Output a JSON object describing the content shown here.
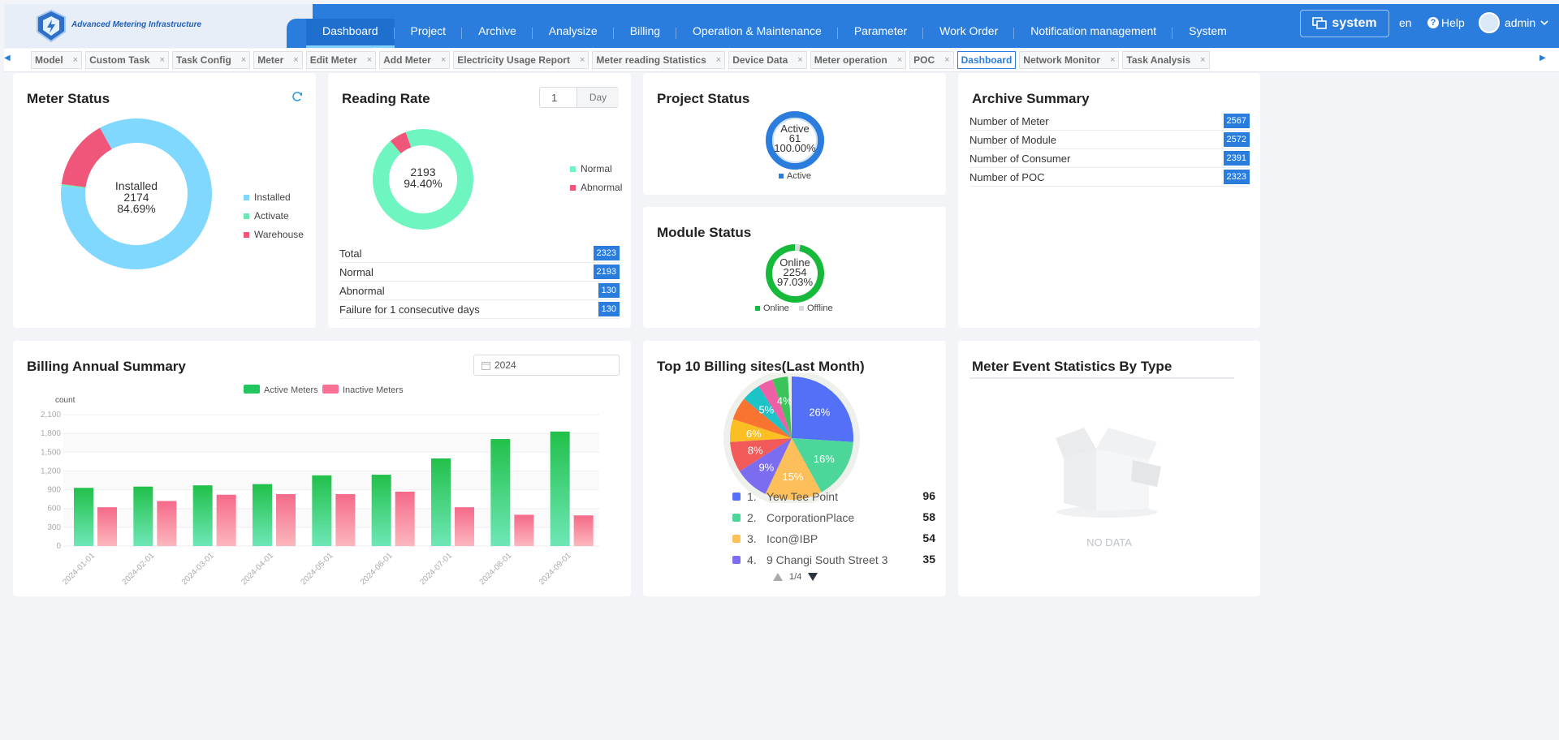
{
  "header": {
    "logo_text": "Advanced Metering Infrastructure",
    "nav": [
      "Dashboard",
      "Project",
      "Archive",
      "Analysize",
      "Billing",
      "Operation & Maintenance",
      "Parameter",
      "Work Order",
      "Notification management",
      "System"
    ],
    "system_label": "system",
    "lang": "en",
    "help": "Help",
    "user": "admin"
  },
  "tabs": [
    "Model",
    "Custom Task",
    "Task Config",
    "Meter",
    "Edit Meter",
    "Add Meter",
    "Electricity Usage Report",
    "Meter reading Statistics",
    "Device Data",
    "Meter operation",
    "POC",
    "Dashboard",
    "Network Monitor",
    "Task Analysis"
  ],
  "meter_status": {
    "title": "Meter Status",
    "center_label": "Installed",
    "center_value": "2174",
    "center_pct": "84.69%",
    "legend": [
      "Installed",
      "Activate",
      "Warehouse"
    ],
    "colors": [
      "#80d8ff",
      "#6ee7b7",
      "#f0567a"
    ],
    "values": [
      2174,
      10,
      383
    ]
  },
  "reading_rate": {
    "title": "Reading Rate",
    "day_value": "1",
    "day_unit": "Day",
    "center_value": "2193",
    "center_pct": "94.40%",
    "legend": [
      "Normal",
      "Abnormal"
    ],
    "colors": [
      "#6ef5c0",
      "#f0567a"
    ],
    "values": [
      2193,
      130
    ],
    "rows": [
      {
        "label": "Total",
        "value": "2323"
      },
      {
        "label": "Normal",
        "value": "2193"
      },
      {
        "label": "Abnormal",
        "value": "130"
      },
      {
        "label": "Failure for 1 consecutive days",
        "value": "130"
      }
    ]
  },
  "project_status": {
    "title": "Project Status",
    "center_label": "Active",
    "center_value": "61",
    "center_pct": "100.00%",
    "legend": "Active",
    "color": "#2a7ddc"
  },
  "module_status": {
    "title": "Module Status",
    "center_label": "Online",
    "center_value": "2254",
    "center_pct": "97.03%",
    "legend": [
      "Online",
      "Offline"
    ],
    "colors": [
      "#17b93a",
      "#d5d8dc"
    ],
    "values": [
      2254,
      69
    ]
  },
  "archive_summary": {
    "title": "Archive Summary",
    "rows": [
      {
        "label": "Number of Meter",
        "value": "2567"
      },
      {
        "label": "Number of Module",
        "value": "2572"
      },
      {
        "label": "Number of Consumer",
        "value": "2391"
      },
      {
        "label": "Number of POC",
        "value": "2323"
      }
    ]
  },
  "billing_summary": {
    "title": "Billing Annual Summary",
    "year": "2024"
  },
  "chart_data": {
    "type": "bar",
    "title": "Billing Annual Summary",
    "ylabel": "count",
    "ylim": [
      0,
      2100
    ],
    "yticks": [
      "0",
      "300",
      "600",
      "900",
      "1,200",
      "1,500",
      "1,800",
      "2,100"
    ],
    "categories": [
      "2024-01-01",
      "2024-02-01",
      "2024-03-01",
      "2024-04-01",
      "2024-05-01",
      "2024-06-01",
      "2024-07-01",
      "2024-08-01",
      "2024-09-01"
    ],
    "series": [
      {
        "name": "Active Meters",
        "color": "#22c55e",
        "values": [
          930,
          950,
          970,
          990,
          1130,
          1140,
          1400,
          1710,
          1830
        ]
      },
      {
        "name": "Inactive Meters",
        "color": "#f87194",
        "values": [
          620,
          720,
          820,
          830,
          830,
          870,
          620,
          500,
          490
        ]
      }
    ]
  },
  "top_sites": {
    "title": "Top 10 Billing sites(Last Month)",
    "pie": [
      {
        "pct": 26,
        "label": "26%",
        "color": "#5470f6"
      },
      {
        "pct": 16,
        "label": "16%",
        "color": "#4cd69a"
      },
      {
        "pct": 15,
        "label": "15%",
        "color": "#fcbf5a"
      },
      {
        "pct": 9,
        "label": "9%",
        "color": "#7b6cf0"
      },
      {
        "pct": 8,
        "label": "8%",
        "color": "#f25a5a"
      },
      {
        "pct": 6,
        "label": "6%",
        "color": "#fbbf24"
      },
      {
        "pct": 6,
        "label": "",
        "color": "#f97331"
      },
      {
        "pct": 5,
        "label": "5%",
        "color": "#1cc4c7"
      },
      {
        "pct": 4,
        "label": "",
        "color": "#ee5fa6"
      },
      {
        "pct": 4,
        "label": "4%",
        "color": "#3ac45a"
      }
    ],
    "rows": [
      {
        "num": "1.",
        "name": "Yew Tee Point",
        "value": "96",
        "color": "#5470f6"
      },
      {
        "num": "2.",
        "name": "CorporationPlace",
        "value": "58",
        "color": "#4cd69a"
      },
      {
        "num": "3.",
        "name": "Icon@IBP",
        "value": "54",
        "color": "#fcbf5a"
      },
      {
        "num": "4.",
        "name": "9 Changi South Street 3",
        "value": "35",
        "color": "#7b6cf0"
      }
    ],
    "pager": "1/4"
  },
  "meter_event": {
    "title": "Meter Event Statistics By Type",
    "empty": "NO DATA"
  }
}
